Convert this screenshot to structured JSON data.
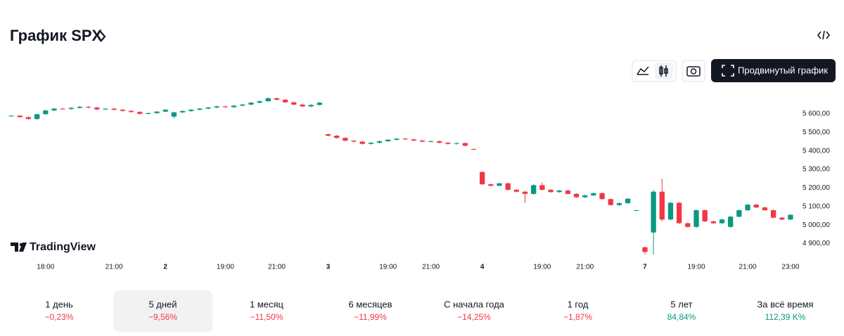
{
  "header": {
    "title": "График SPX",
    "logo": "TradingView",
    "advanced_button": "Продвинутый график"
  },
  "chart_data": {
    "type": "candlestick",
    "up_color": "#089981",
    "down_color": "#f23645",
    "open": [
      5588,
      5590,
      5582,
      5572,
      5598,
      5618,
      5628,
      5626,
      5632,
      5638,
      5634,
      5624,
      5628,
      5622,
      5616,
      5610,
      5600,
      5604,
      5612,
      5585,
      5608,
      5615,
      5622,
      5628,
      5634,
      5640,
      5636,
      5644,
      5650,
      5660,
      5668,
      5684,
      5676,
      5662,
      5650,
      5640,
      5648,
      5490,
      5482,
      5470,
      5455,
      5450,
      5438,
      5444,
      5452,
      5460,
      5466,
      5462,
      5456,
      5450,
      5452,
      5444,
      5438,
      5442,
      5410,
      5286,
      5220,
      5212,
      5225,
      5190,
      5180,
      5168,
      5215,
      5190,
      5178,
      5186,
      5168,
      5150,
      5160,
      5172,
      5140,
      5108,
      5118,
      5080,
      4880,
      4960,
      5180,
      5030,
      5120,
      5010,
      4990,
      5080,
      5020,
      5010,
      4990,
      5045,
      5080,
      5110,
      5095,
      5080,
      5040,
      5030
    ],
    "high": [
      5593,
      5595,
      5587,
      5600,
      5622,
      5632,
      5632,
      5636,
      5642,
      5642,
      5638,
      5630,
      5632,
      5626,
      5620,
      5614,
      5608,
      5615,
      5625,
      5612,
      5619,
      5626,
      5632,
      5638,
      5644,
      5644,
      5648,
      5654,
      5664,
      5672,
      5688,
      5688,
      5680,
      5666,
      5654,
      5652,
      5664,
      5494,
      5486,
      5474,
      5459,
      5454,
      5448,
      5456,
      5464,
      5470,
      5470,
      5466,
      5460,
      5456,
      5456,
      5448,
      5446,
      5446,
      5414,
      5290,
      5224,
      5228,
      5229,
      5194,
      5184,
      5220,
      5230,
      5194,
      5190,
      5190,
      5172,
      5164,
      5176,
      5176,
      5144,
      5122,
      5146,
      5082,
      4884,
      5190,
      5250,
      5125,
      5124,
      5014,
      5084,
      5084,
      5024,
      5034,
      5050,
      5084,
      5114,
      5114,
      5099,
      5084,
      5044,
      5060
    ],
    "low": [
      5584,
      5580,
      5568,
      5568,
      5594,
      5614,
      5622,
      5622,
      5628,
      5630,
      5620,
      5620,
      5618,
      5612,
      5606,
      5596,
      5596,
      5600,
      5608,
      5575,
      5604,
      5611,
      5618,
      5624,
      5630,
      5632,
      5632,
      5640,
      5646,
      5656,
      5664,
      5672,
      5658,
      5646,
      5636,
      5636,
      5644,
      5478,
      5466,
      5451,
      5446,
      5434,
      5434,
      5440,
      5448,
      5456,
      5458,
      5452,
      5446,
      5446,
      5440,
      5434,
      5434,
      5424,
      5406,
      5216,
      5208,
      5208,
      5186,
      5176,
      5120,
      5164,
      5186,
      5174,
      5174,
      5164,
      5146,
      5146,
      5156,
      5136,
      5104,
      5104,
      5114,
      5078,
      4840,
      4840,
      5020,
      5026,
      5006,
      4986,
      4986,
      5016,
      5006,
      5006,
      4986,
      5041,
      5076,
      5091,
      5076,
      5036,
      5026,
      5026
    ],
    "close": [
      5590,
      5582,
      5572,
      5598,
      5618,
      5628,
      5626,
      5632,
      5638,
      5634,
      5624,
      5628,
      5622,
      5616,
      5610,
      5600,
      5604,
      5612,
      5622,
      5608,
      5615,
      5622,
      5628,
      5634,
      5640,
      5636,
      5644,
      5650,
      5660,
      5668,
      5684,
      5676,
      5662,
      5650,
      5640,
      5648,
      5660,
      5482,
      5470,
      5455,
      5450,
      5438,
      5444,
      5452,
      5460,
      5466,
      5462,
      5456,
      5450,
      5452,
      5444,
      5438,
      5442,
      5428,
      5408,
      5220,
      5212,
      5225,
      5190,
      5180,
      5168,
      5215,
      5190,
      5178,
      5186,
      5168,
      5150,
      5160,
      5172,
      5140,
      5108,
      5118,
      5142,
      5080,
      4855,
      5180,
      5030,
      5120,
      5010,
      4990,
      5080,
      5020,
      5010,
      5030,
      5045,
      5080,
      5110,
      5095,
      5080,
      5040,
      5030,
      5055
    ],
    "xlim": [
      -0.5,
      91.5
    ],
    "xticks": [
      {
        "value": 4,
        "label": "18:00"
      },
      {
        "value": 12,
        "label": "21:00"
      },
      {
        "value": 18,
        "label": "2"
      },
      {
        "value": 25,
        "label": "19:00"
      },
      {
        "value": 31,
        "label": "21:00"
      },
      {
        "value": 37,
        "label": "3"
      },
      {
        "value": 44,
        "label": "19:00"
      },
      {
        "value": 49,
        "label": "21:00"
      },
      {
        "value": 55,
        "label": "4"
      },
      {
        "value": 62,
        "label": "19:00"
      },
      {
        "value": 67,
        "label": "21:00"
      },
      {
        "value": 74,
        "label": "7"
      },
      {
        "value": 80,
        "label": "19:00"
      },
      {
        "value": 86,
        "label": "21:00"
      },
      {
        "value": 91,
        "label": "23:00"
      }
    ],
    "ylim": [
      4830,
      5740
    ],
    "yticks": [
      {
        "value": 4900,
        "label": "4 900,00"
      },
      {
        "value": 5000,
        "label": "5 000,00"
      },
      {
        "value": 5100,
        "label": "5 100,00"
      },
      {
        "value": 5200,
        "label": "5 200,00"
      },
      {
        "value": 5300,
        "label": "5 300,00"
      },
      {
        "value": 5400,
        "label": "5 400,00"
      },
      {
        "value": 5500,
        "label": "5 500,00"
      },
      {
        "value": 5600,
        "label": "5 600,00"
      }
    ]
  },
  "periods": {
    "selected_index": 1,
    "items": [
      {
        "name": "1 день",
        "change": "−0,23%",
        "color": "#f23645"
      },
      {
        "name": "5 дней",
        "change": "−9,56%",
        "color": "#f23645"
      },
      {
        "name": "1 месяц",
        "change": "−11,50%",
        "color": "#f23645"
      },
      {
        "name": "6 месяцев",
        "change": "−11,99%",
        "color": "#f23645"
      },
      {
        "name": "С начала года",
        "change": "−14,25%",
        "color": "#f23645"
      },
      {
        "name": "1 год",
        "change": "−1,87%",
        "color": "#f23645"
      },
      {
        "name": "5 лет",
        "change": "84,84%",
        "color": "#089981"
      },
      {
        "name": "За всё время",
        "change": "112,39 K%",
        "color": "#089981"
      }
    ]
  }
}
